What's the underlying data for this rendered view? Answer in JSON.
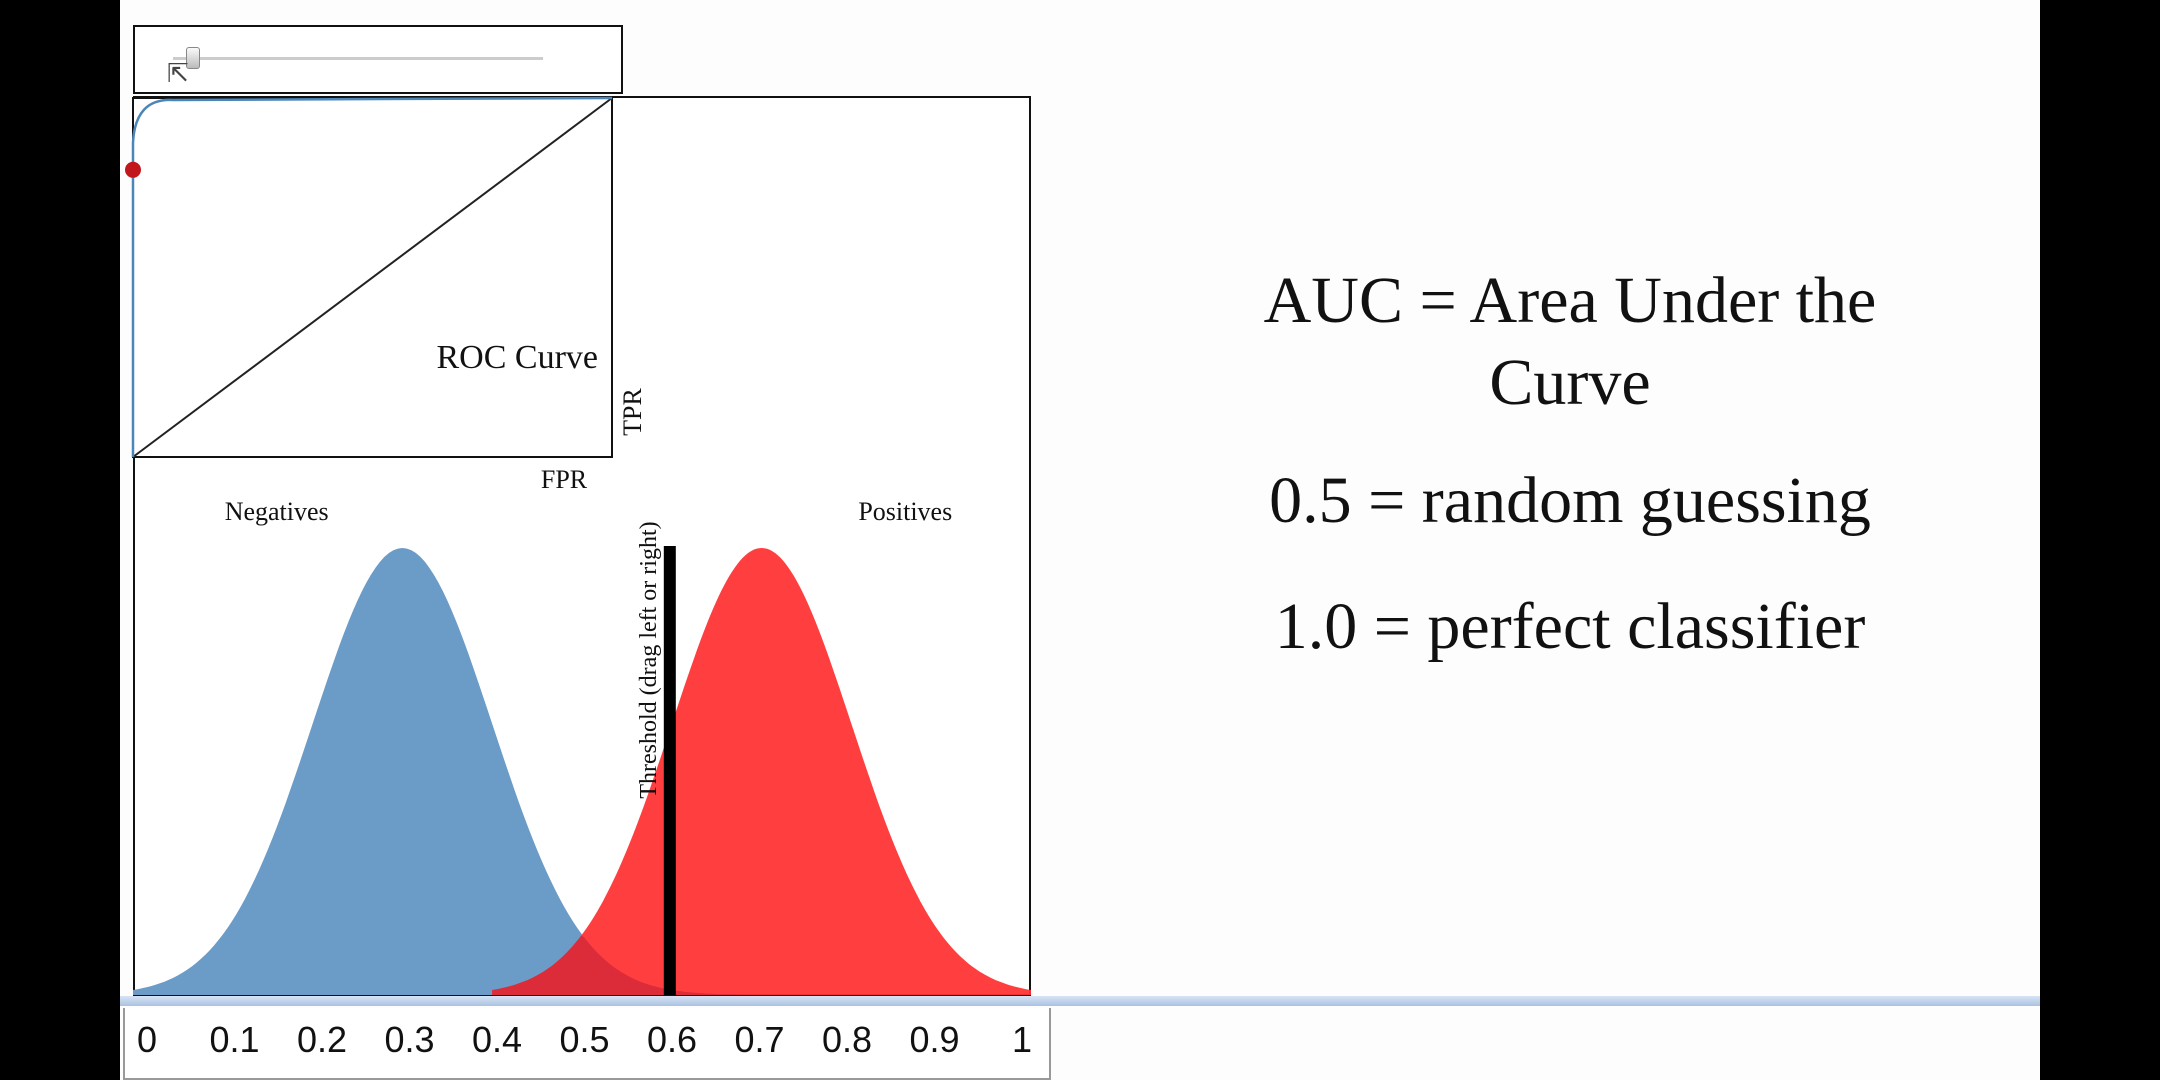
{
  "slider": {
    "value": 0.05
  },
  "roc": {
    "title": "ROC Curve",
    "xlabel": "FPR",
    "ylabel": "TPR",
    "point": {
      "fpr": 0.0,
      "tpr": 0.8
    }
  },
  "chart_data": {
    "type": "area",
    "x_ticks": [
      "0",
      "0.1",
      "0.2",
      "0.3",
      "0.4",
      "0.5",
      "0.6",
      "0.7",
      "0.8",
      "0.9",
      "1"
    ],
    "xlim": [
      0,
      1
    ],
    "series": [
      {
        "name": "Negatives",
        "mean": 0.3,
        "sd": 0.1,
        "color": "#6b9bc7"
      },
      {
        "name": "Positives",
        "mean": 0.7,
        "sd": 0.1,
        "color": "#ff3333"
      }
    ],
    "threshold": {
      "value": 0.6,
      "label": "Threshold (drag left or right)"
    },
    "grid": false
  },
  "text": {
    "auc_line1": "AUC = Area Under the",
    "auc_line2": "Curve",
    "random": "0.5 = random guessing",
    "perfect": "1.0 = perfect classifier"
  },
  "colors": {
    "negatives": "#6b9bc7",
    "positives": "#ff3333",
    "overlap": "#dc2c3a",
    "threshold": "#000000",
    "roc_point": "#c0161c"
  }
}
